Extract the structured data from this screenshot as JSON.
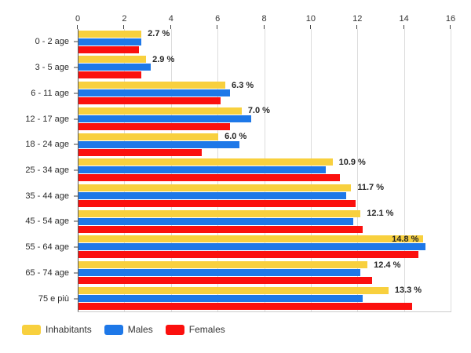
{
  "chart_data": {
    "type": "bar",
    "orientation": "horizontal",
    "title": "",
    "categories": [
      "0 - 2 age",
      "3 - 5 age",
      "6 - 11 age",
      "12 - 17 age",
      "18 - 24 age",
      "25 - 34 age",
      "35 - 44 age",
      "45 - 54 age",
      "55 - 64 age",
      "65 - 74 age",
      "75 e più"
    ],
    "series": [
      {
        "name": "Inhabitants",
        "color": "#F8D03E",
        "values": [
          2.7,
          2.9,
          6.3,
          7.0,
          6.0,
          10.9,
          11.7,
          12.1,
          14.8,
          12.4,
          13.3
        ]
      },
      {
        "name": "Males",
        "color": "#1E78E8",
        "values": [
          2.7,
          3.1,
          6.5,
          7.4,
          6.9,
          10.6,
          11.5,
          11.8,
          14.9,
          12.1,
          12.2
        ]
      },
      {
        "name": "Females",
        "color": "#FB100E",
        "values": [
          2.6,
          2.7,
          6.1,
          6.5,
          5.3,
          11.2,
          11.9,
          12.2,
          14.6,
          12.6,
          14.3
        ]
      }
    ],
    "data_labels": [
      "2.7 %",
      "2.9 %",
      "6.3 %",
      "7.0 %",
      "6.0 %",
      "10.9 %",
      "11.7 %",
      "12.1 %",
      "14.8 %",
      "12.4 %",
      "13.3 %"
    ],
    "data_labels_series": "Inhabitants",
    "xlabel": "",
    "ylabel": "",
    "xlim": [
      0,
      16
    ],
    "x_ticks": [
      0,
      2,
      4,
      6,
      8,
      10,
      12,
      14,
      16
    ],
    "x_axis_position": "top",
    "grid": true,
    "grid_color": "#dcdcdc",
    "legend_position": "bottom-left",
    "background_color": "#ffffff"
  },
  "legend": {
    "items": [
      {
        "label": "Inhabitants",
        "color": "#F8D03E"
      },
      {
        "label": "Males",
        "color": "#1E78E8"
      },
      {
        "label": "Females",
        "color": "#FB100E"
      }
    ]
  }
}
